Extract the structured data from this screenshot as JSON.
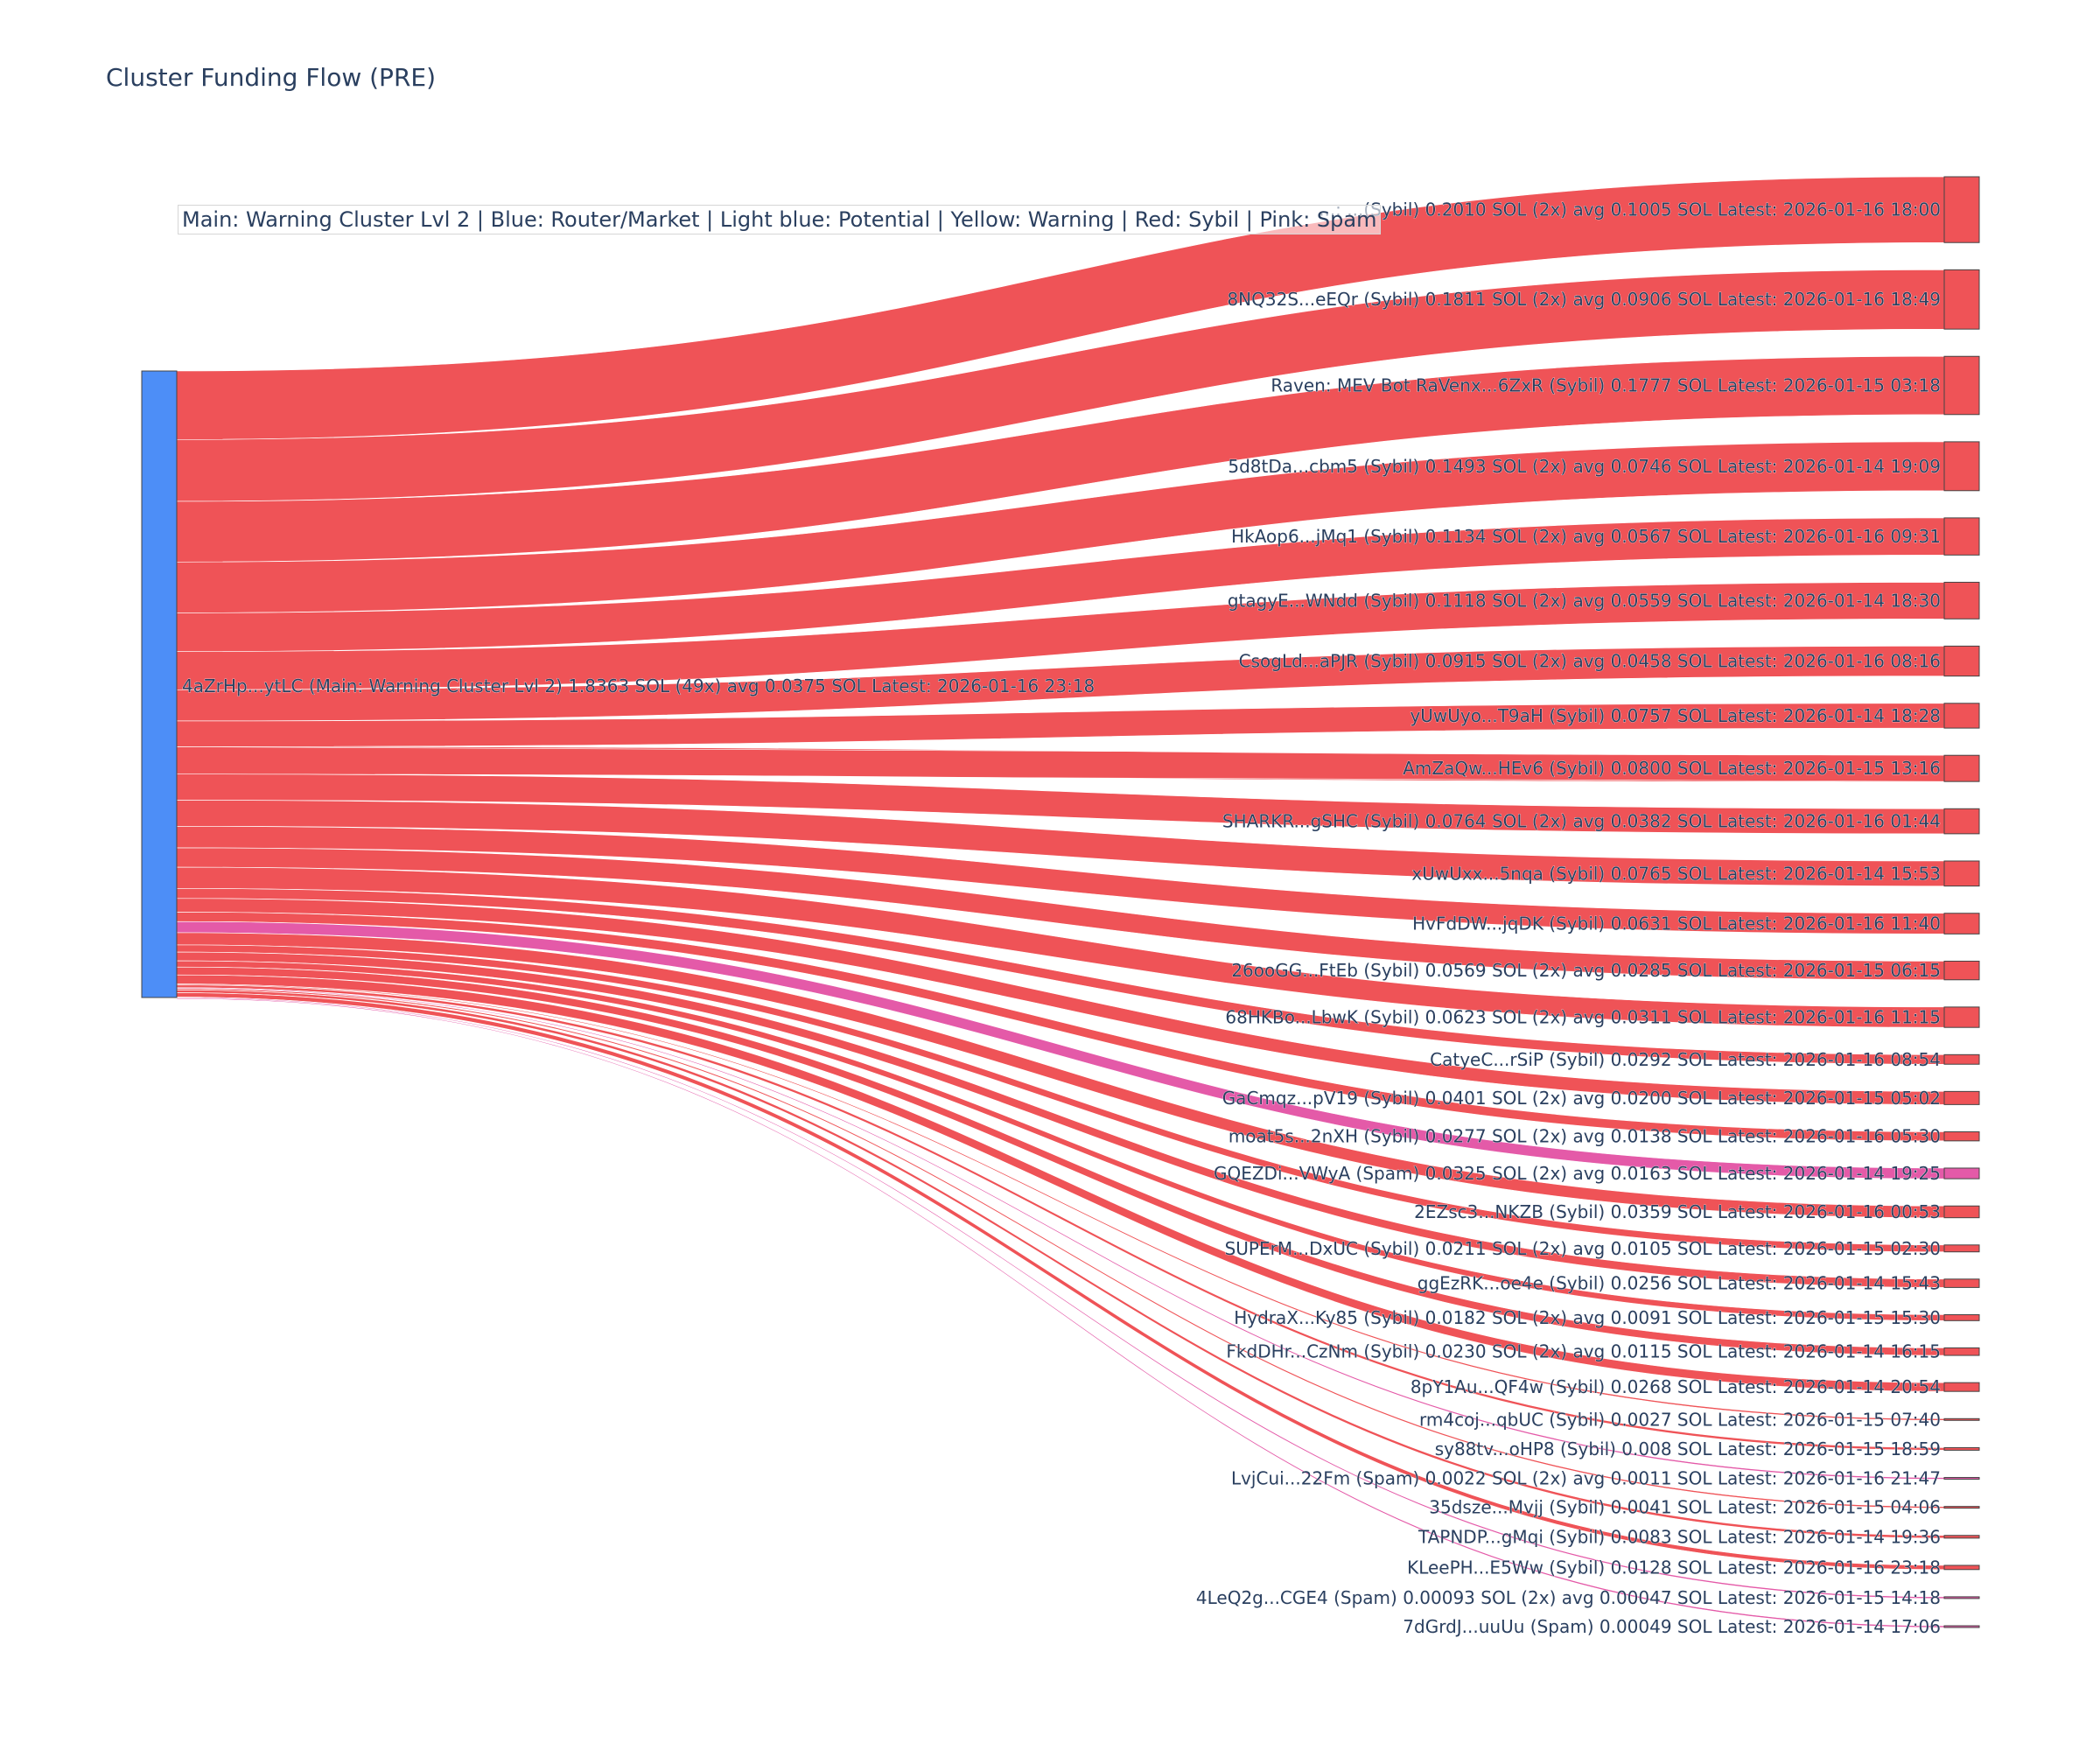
{
  "chart_data": {
    "type": "sankey",
    "title": "Cluster Funding Flow (PRE)",
    "annotation": "Main: Warning Cluster Lvl 2  |  Blue: Router/Market | Light blue: Potential | Yellow: Warning | Red: Sybil | Pink: Spam",
    "colors": {
      "router": "#4d8ef7",
      "sybil": "#ef5357",
      "spam": "#e45aa8",
      "node_border": "#444444"
    },
    "source": {
      "label": "4aZrHp...ytLC (Main: Warning Cluster Lvl 2) 1.8363 SOL (49x) avg 0.0375 SOL Latest: 2026-01-16 23:18",
      "value": 1.8363
    },
    "targets": [
      {
        "label": "...: ...(Sybil) 0.2010 SOL (2x) avg 0.1005 SOL Latest: 2026-01-16 18:00",
        "value": 0.201,
        "type": "sybil"
      },
      {
        "label": "8NQ32S...eEQr (Sybil) 0.1811 SOL (2x) avg 0.0906 SOL Latest: 2026-01-16 18:49",
        "value": 0.1811,
        "type": "sybil"
      },
      {
        "label": "Raven: MEV Bot RaVenx...6ZxR (Sybil) 0.1777 SOL Latest: 2026-01-15 03:18",
        "value": 0.1777,
        "type": "sybil"
      },
      {
        "label": "5d8tDa...cbm5 (Sybil) 0.1493 SOL (2x) avg 0.0746 SOL Latest: 2026-01-14 19:09",
        "value": 0.1493,
        "type": "sybil"
      },
      {
        "label": "HkAop6...jMq1 (Sybil) 0.1134 SOL (2x) avg 0.0567 SOL Latest: 2026-01-16 09:31",
        "value": 0.1134,
        "type": "sybil"
      },
      {
        "label": "gtagyE...WNdd (Sybil) 0.1118 SOL (2x) avg 0.0559 SOL Latest: 2026-01-14 18:30",
        "value": 0.1118,
        "type": "sybil"
      },
      {
        "label": "CsogLd...aPJR (Sybil) 0.0915 SOL (2x) avg 0.0458 SOL Latest: 2026-01-16 08:16",
        "value": 0.0915,
        "type": "sybil"
      },
      {
        "label": "yUwUyo...T9aH (Sybil) 0.0757 SOL Latest: 2026-01-14 18:28",
        "value": 0.0757,
        "type": "sybil"
      },
      {
        "label": "AmZaQw...HEv6 (Sybil) 0.0800 SOL Latest: 2026-01-15 13:16",
        "value": 0.08,
        "type": "sybil"
      },
      {
        "label": "SHARKR...gSHC (Sybil) 0.0764 SOL (2x) avg 0.0382 SOL Latest: 2026-01-16 01:44",
        "value": 0.0764,
        "type": "sybil"
      },
      {
        "label": "xUwUxx...5nqa (Sybil) 0.0765 SOL Latest: 2026-01-14 15:53",
        "value": 0.0765,
        "type": "sybil"
      },
      {
        "label": "HvFdDW...jqDK (Sybil) 0.0631 SOL Latest: 2026-01-16 11:40",
        "value": 0.0631,
        "type": "sybil"
      },
      {
        "label": "26ooGG...FtEb (Sybil) 0.0569 SOL (2x) avg 0.0285 SOL Latest: 2026-01-15 06:15",
        "value": 0.0569,
        "type": "sybil"
      },
      {
        "label": "68HKBo...LbwK (Sybil) 0.0623 SOL (2x) avg 0.0311 SOL Latest: 2026-01-16 11:15",
        "value": 0.0623,
        "type": "sybil"
      },
      {
        "label": "CatyeC...rSiP (Sybil) 0.0292 SOL Latest: 2026-01-16 08:54",
        "value": 0.0292,
        "type": "sybil"
      },
      {
        "label": "GaCmqz...pV19 (Sybil) 0.0401 SOL (2x) avg 0.0200 SOL Latest: 2026-01-15 05:02",
        "value": 0.0401,
        "type": "sybil"
      },
      {
        "label": "moat5s...2nXH (Sybil) 0.0277 SOL (2x) avg 0.0138 SOL Latest: 2026-01-16 05:30",
        "value": 0.0277,
        "type": "sybil"
      },
      {
        "label": "GQEZDi...VWyA (Spam) 0.0325 SOL (2x) avg 0.0163 SOL Latest: 2026-01-14 19:25",
        "value": 0.0325,
        "type": "spam"
      },
      {
        "label": "2EZsc3...NKZB (Sybil) 0.0359 SOL Latest: 2026-01-16 00:53",
        "value": 0.0359,
        "type": "sybil"
      },
      {
        "label": "SUPErM...DxUC (Sybil) 0.0211 SOL (2x) avg 0.0105 SOL Latest: 2026-01-15 02:30",
        "value": 0.0211,
        "type": "sybil"
      },
      {
        "label": "ggEzRK...oe4e (Sybil) 0.0256 SOL Latest: 2026-01-14 15:43",
        "value": 0.0256,
        "type": "sybil"
      },
      {
        "label": "HydraX...Ky85 (Sybil) 0.0182 SOL (2x) avg 0.0091 SOL Latest: 2026-01-15 15:30",
        "value": 0.0182,
        "type": "sybil"
      },
      {
        "label": "FkdDHr...CzNm (Sybil) 0.0230 SOL (2x) avg 0.0115 SOL Latest: 2026-01-14 16:15",
        "value": 0.023,
        "type": "sybil"
      },
      {
        "label": "8pY1Au...QF4w (Sybil) 0.0268 SOL Latest: 2026-01-14 20:54",
        "value": 0.0268,
        "type": "sybil"
      },
      {
        "label": "rm4coj...qbUC (Sybil) 0.0027 SOL Latest: 2026-01-15 07:40",
        "value": 0.0027,
        "type": "sybil"
      },
      {
        "label": "sy88tv...oHP8 (Sybil) 0.008 SOL Latest: 2026-01-15 18:59",
        "value": 0.008,
        "type": "sybil"
      },
      {
        "label": "LvjCui...22Fm (Spam) 0.0022 SOL (2x) avg 0.0011 SOL Latest: 2026-01-16 21:47",
        "value": 0.0022,
        "type": "spam"
      },
      {
        "label": "35dsze...Mvjj (Sybil) 0.0041 SOL Latest: 2026-01-15 04:06",
        "value": 0.0041,
        "type": "sybil"
      },
      {
        "label": "TAPNDP...gMqi (Sybil) 0.0083 SOL Latest: 2026-01-14 19:36",
        "value": 0.0083,
        "type": "sybil"
      },
      {
        "label": "KLeePH...E5Ww (Sybil) 0.0128 SOL Latest: 2026-01-16 23:18",
        "value": 0.0128,
        "type": "sybil"
      },
      {
        "label": "4LeQ2g...CGE4 (Spam) 0.00093 SOL (2x) avg 0.00047 SOL Latest: 2026-01-15 14:18",
        "value": 0.00093,
        "type": "spam"
      },
      {
        "label": "7dGrdJ...uuUu (Spam) 0.00049 SOL Latest: 2026-01-14 17:06",
        "value": 0.00049,
        "type": "spam"
      }
    ]
  }
}
